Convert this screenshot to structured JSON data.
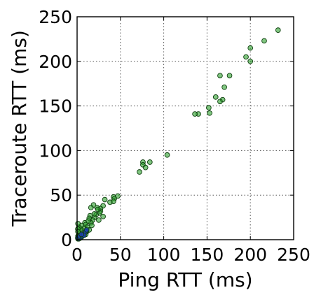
{
  "chart_data": {
    "type": "scatter",
    "title": "",
    "xlabel": "Ping RTT (ms)",
    "ylabel": "Traceroute RTT (ms)",
    "xlim": [
      0,
      250
    ],
    "ylim": [
      0,
      250
    ],
    "xticks": [
      "0",
      "50",
      "100",
      "150",
      "200",
      "250"
    ],
    "yticks": [
      "0",
      "50",
      "100",
      "150",
      "200",
      "250"
    ],
    "grid": true,
    "colors": {
      "green_fill": "#2ca02c",
      "green_edge": "#0d3d0d",
      "blue_fill": "#1f3fbf",
      "grid": "#555555"
    },
    "series": [
      {
        "color": "green",
        "points": [
          [
            232,
            235
          ],
          [
            216,
            223
          ],
          [
            200,
            215
          ],
          [
            195,
            205
          ],
          [
            200,
            200
          ],
          [
            176,
            184
          ],
          [
            165,
            184
          ],
          [
            170,
            171
          ],
          [
            160,
            160
          ],
          [
            168,
            157
          ],
          [
            165,
            155
          ],
          [
            152,
            148
          ],
          [
            153,
            142
          ],
          [
            140,
            141
          ],
          [
            136,
            141
          ],
          [
            104,
            95
          ],
          [
            84,
            87
          ],
          [
            76,
            87
          ],
          [
            76,
            84
          ],
          [
            79,
            81
          ],
          [
            72,
            76
          ],
          [
            47,
            49
          ],
          [
            42,
            48
          ],
          [
            43,
            46
          ],
          [
            32,
            45
          ],
          [
            38,
            42
          ],
          [
            42,
            43
          ],
          [
            30,
            38
          ],
          [
            19,
            39
          ],
          [
            16,
            36
          ],
          [
            23,
            36
          ],
          [
            27,
            35
          ],
          [
            27,
            32
          ],
          [
            26,
            30
          ],
          [
            22,
            28
          ],
          [
            20,
            25
          ],
          [
            18,
            22
          ],
          [
            15,
            27
          ],
          [
            14,
            24
          ],
          [
            20,
            29
          ],
          [
            9,
            19
          ],
          [
            8,
            13
          ],
          [
            5,
            16
          ],
          [
            6,
            10
          ],
          [
            4,
            12
          ],
          [
            3,
            7
          ],
          [
            2,
            14
          ],
          [
            1,
            18
          ],
          [
            0,
            12
          ],
          [
            1,
            9
          ],
          [
            2,
            5
          ],
          [
            3,
            3
          ],
          [
            1,
            4
          ],
          [
            0,
            2
          ],
          [
            10,
            17
          ],
          [
            12,
            14
          ],
          [
            16,
            19
          ],
          [
            13,
            21
          ],
          [
            24,
            34
          ],
          [
            30,
            26
          ],
          [
            7,
            5
          ],
          [
            11,
            9
          ],
          [
            10,
            6
          ],
          [
            25,
            22
          ],
          [
            14,
            11
          ],
          [
            17,
            16
          ]
        ]
      },
      {
        "color": "blue",
        "points": [
          [
            1,
            1
          ],
          [
            2,
            2
          ],
          [
            3,
            2
          ],
          [
            4,
            4
          ],
          [
            5,
            3
          ],
          [
            6,
            5
          ],
          [
            7,
            6
          ],
          [
            8,
            7
          ],
          [
            9,
            8
          ],
          [
            10,
            9
          ],
          [
            2,
            1
          ],
          [
            1,
            2
          ],
          [
            4,
            2
          ],
          [
            3,
            4
          ],
          [
            6,
            4
          ],
          [
            8,
            5
          ],
          [
            5,
            6
          ],
          [
            11,
            11
          ]
        ]
      }
    ]
  }
}
